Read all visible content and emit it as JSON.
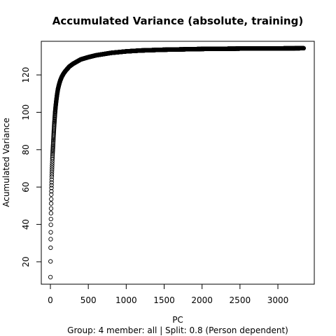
{
  "chart_data": {
    "type": "scatter",
    "title": "Accumulated Variance (absolute, training)",
    "xlabel": "PC",
    "ylabel": "Acumulated Variance",
    "subtitle": "Group:  4 member:  all | Split: 0.8  (Person dependent)",
    "xlim": [
      -120,
      3480
    ],
    "ylim": [
      8,
      138
    ],
    "xticks": [
      0,
      500,
      1000,
      1500,
      2000,
      2500,
      3000
    ],
    "yticks": [
      20,
      40,
      60,
      80,
      100,
      120
    ],
    "grid": false,
    "marker": "open-circle",
    "series": [
      {
        "curve_samples": [
          [
            1,
            11.8
          ],
          [
            2,
            20.2
          ],
          [
            3,
            27.5
          ],
          [
            4,
            32.1
          ],
          [
            5,
            35.8
          ],
          [
            6,
            39.8
          ],
          [
            7,
            42.9
          ],
          [
            8,
            46.0
          ],
          [
            9,
            48.5
          ],
          [
            10,
            51.2
          ],
          [
            11,
            53.5
          ],
          [
            12,
            56.0
          ],
          [
            14,
            59.5
          ],
          [
            16,
            62.5
          ],
          [
            18,
            65.5
          ],
          [
            20,
            68.0
          ],
          [
            23,
            71.5
          ],
          [
            26,
            75.0
          ],
          [
            30,
            78.5
          ],
          [
            35,
            82.0
          ],
          [
            40,
            86.0
          ],
          [
            45,
            89.5
          ],
          [
            50,
            93.0
          ],
          [
            56,
            96.5
          ],
          [
            62,
            100.0
          ],
          [
            70,
            103.5
          ],
          [
            80,
            107.0
          ],
          [
            90,
            110.0
          ],
          [
            100,
            112.5
          ],
          [
            115,
            115.0
          ],
          [
            130,
            117.0
          ],
          [
            150,
            119.0
          ],
          [
            175,
            120.8
          ],
          [
            200,
            122.2
          ],
          [
            250,
            124.5
          ],
          [
            300,
            126.0
          ],
          [
            400,
            128.3
          ],
          [
            500,
            129.5
          ],
          [
            600,
            130.5
          ],
          [
            800,
            131.8
          ],
          [
            1000,
            132.6
          ],
          [
            1200,
            133.1
          ],
          [
            1500,
            133.5
          ],
          [
            2000,
            133.9
          ],
          [
            2500,
            134.1
          ],
          [
            3000,
            134.2
          ],
          [
            3340,
            134.3
          ]
        ]
      }
    ]
  }
}
